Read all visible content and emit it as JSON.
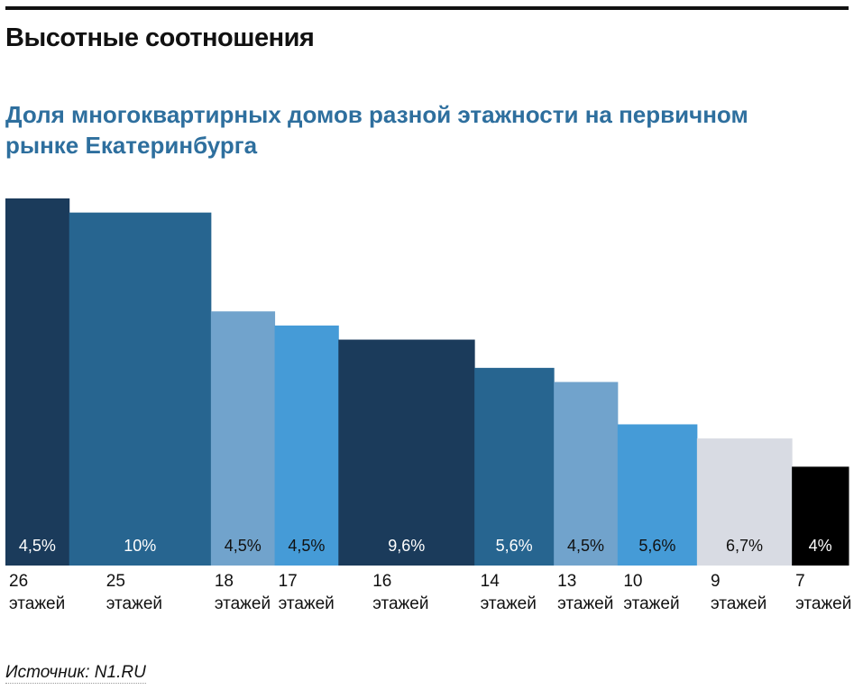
{
  "title": "Высотные соотношения",
  "source": "Источник: N1.RU",
  "chart_data": {
    "type": "bar",
    "title": "Доля многоквартирных домов разной этажности на первичном рынке Екатеринбурга",
    "note": "bar width = share, bar height = number of floors",
    "categories": [
      "26",
      "25",
      "18",
      "17",
      "16",
      "14",
      "13",
      "10",
      "9",
      "7"
    ],
    "unit_label": "этажей",
    "floors": [
      26,
      25,
      18,
      17,
      16,
      14,
      13,
      10,
      9,
      7
    ],
    "shares": [
      4.5,
      10,
      4.5,
      4.5,
      9.6,
      5.6,
      4.5,
      5.6,
      6.7,
      4
    ],
    "share_labels": [
      "4,5%",
      "10%",
      "4,5%",
      "4,5%",
      "9,6%",
      "5,6%",
      "4,5%",
      "5,6%",
      "6,7%",
      "4%"
    ],
    "colors": [
      "#1b3b5b",
      "#276590",
      "#71a3cc",
      "#459bd7",
      "#1b3b5b",
      "#276590",
      "#71a3cc",
      "#459bd7",
      "#d8dbe3",
      "#000000"
    ],
    "label_colors": [
      "#ffffff",
      "#ffffff",
      "#111111",
      "#111111",
      "#ffffff",
      "#ffffff",
      "#111111",
      "#111111",
      "#111111",
      "#ffffff"
    ]
  }
}
